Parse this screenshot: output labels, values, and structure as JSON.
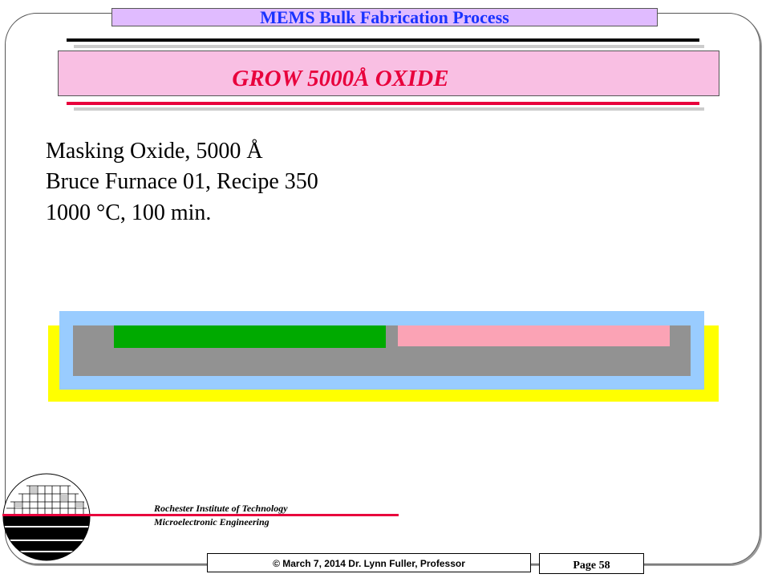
{
  "header": {
    "banner": "MEMS Bulk Fabrication Process",
    "title": "GROW 5000Å OXIDE"
  },
  "body": {
    "lines": [
      "Masking Oxide, 5000 Å",
      "Bruce Furnace 01, Recipe 350",
      "1000 °C, 100 min."
    ]
  },
  "diagram": {
    "colors": {
      "substrate_layer": "#ffff00",
      "oxide": "#99ccff",
      "silicon": "#929292",
      "green_region": "#00aa00",
      "pink_region": "#fba3b5"
    }
  },
  "footer": {
    "institution": "Rochester Institute of Technology",
    "department": "Microelectronic Engineering",
    "copyright": "© March 7, 2014 Dr. Lynn Fuller, Professor",
    "page": "Page 58"
  }
}
